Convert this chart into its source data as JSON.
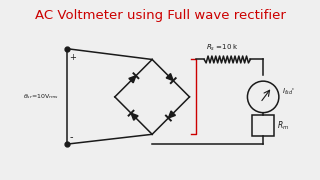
{
  "title": "AC Voltmeter using Full wave rectifier",
  "title_color": "#cc0000",
  "title_fontsize": 9.5,
  "bg_color": "#efefef",
  "circuit_color": "#1a1a1a",
  "red_color": "#cc0000",
  "lw": 1.1
}
